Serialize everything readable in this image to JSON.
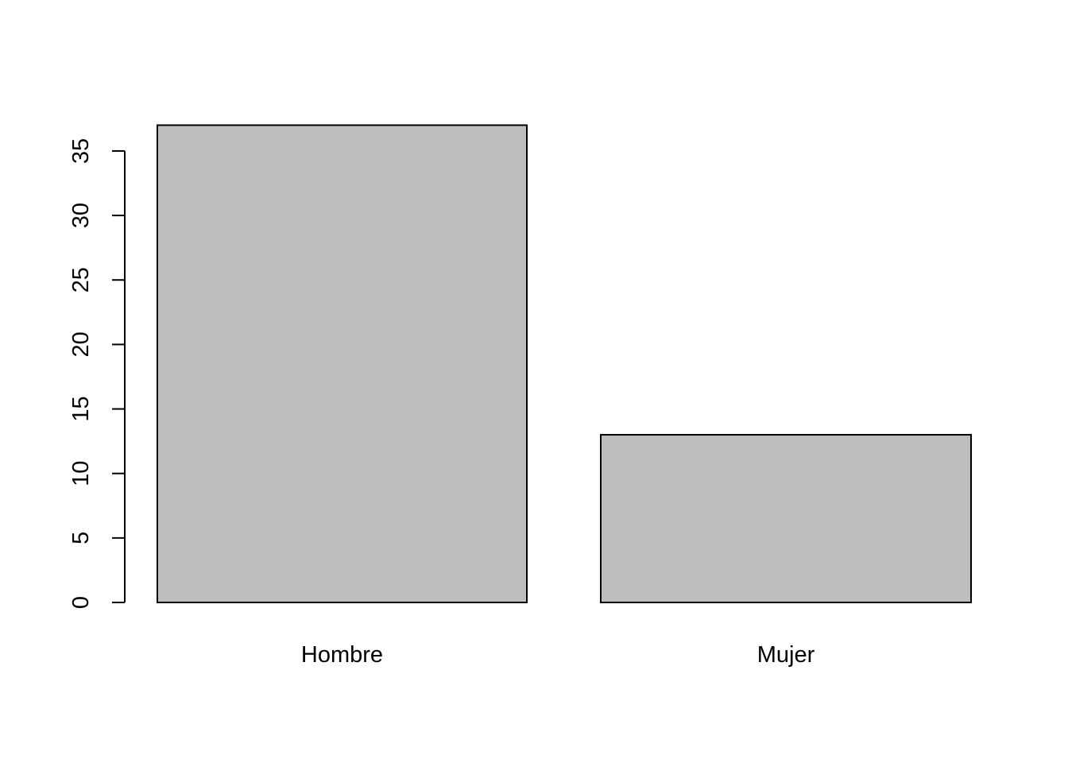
{
  "chart_data": {
    "type": "bar",
    "title": "",
    "xlabel": "",
    "ylabel": "",
    "categories": [
      "Hombre",
      "Mujer"
    ],
    "values": [
      37,
      13
    ],
    "ylim": [
      0,
      37
    ],
    "yticks": [
      0,
      5,
      10,
      15,
      20,
      25,
      30,
      35
    ],
    "ytick_labels": [
      "0",
      "5",
      "10",
      "15",
      "20",
      "25",
      "30",
      "35"
    ],
    "grid": false,
    "legend": "none",
    "colors": {
      "bar_fill": "#bebebe",
      "bar_stroke": "#000000",
      "axis": "#000000",
      "background": "#ffffff"
    }
  }
}
